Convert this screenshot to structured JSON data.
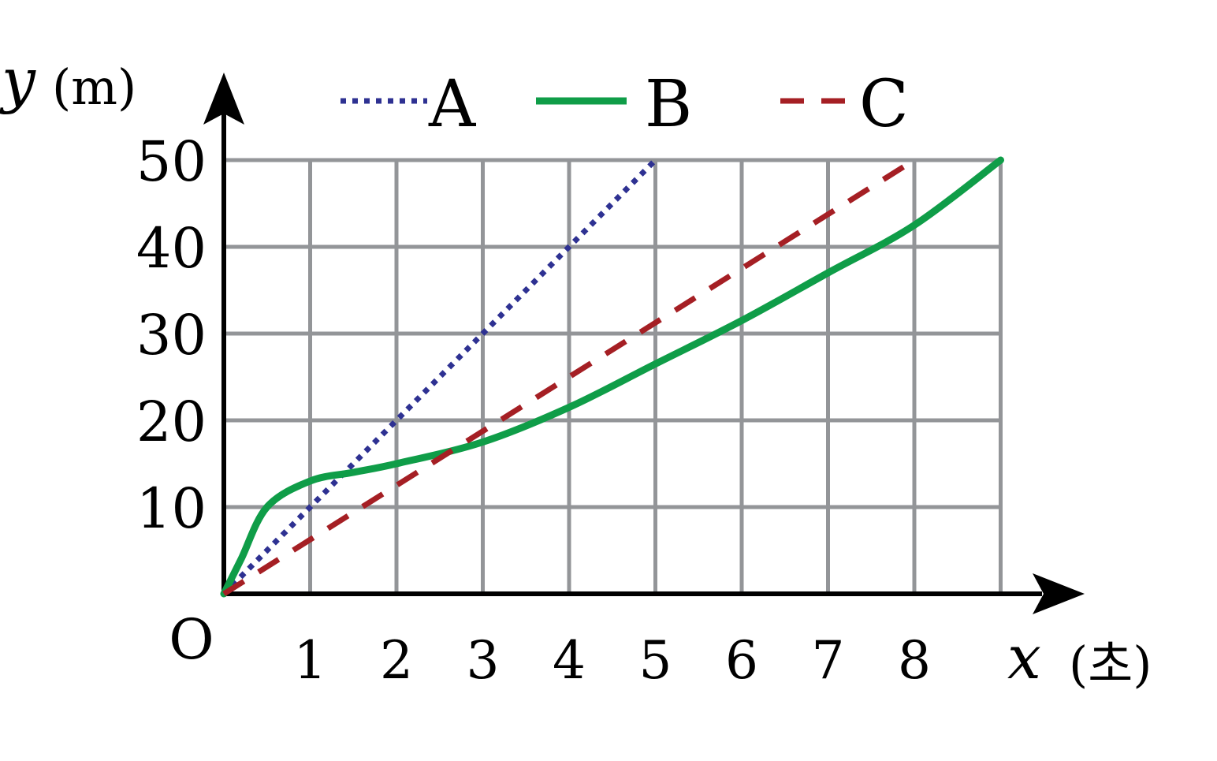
{
  "chart_data": {
    "type": "line",
    "title": "",
    "ylabel": "y",
    "yunit": "(m)",
    "xlabel": "x",
    "xunit": "(초)",
    "origin_label": "O",
    "xlim": [
      0,
      9
    ],
    "ylim": [
      0,
      50
    ],
    "x_ticks": [
      "1",
      "2",
      "3",
      "4",
      "5",
      "6",
      "7",
      "8"
    ],
    "y_ticks": [
      "10",
      "20",
      "30",
      "40",
      "50"
    ],
    "grid": true,
    "legend_position": "top",
    "series": [
      {
        "name": "A",
        "style": "dotted",
        "color": "#2e3192",
        "points": [
          [
            0,
            0
          ],
          [
            5,
            50
          ]
        ]
      },
      {
        "name": "B",
        "style": "solid",
        "color": "#0f9d48",
        "points": [
          [
            0,
            0
          ],
          [
            0.2,
            4
          ],
          [
            0.5,
            10
          ],
          [
            1,
            13
          ],
          [
            1.5,
            14
          ],
          [
            2,
            15
          ],
          [
            3,
            17.5
          ],
          [
            4,
            21.5
          ],
          [
            5,
            26.5
          ],
          [
            6,
            31.5
          ],
          [
            7,
            37
          ],
          [
            8,
            42.5
          ],
          [
            9,
            50
          ]
        ]
      },
      {
        "name": "C",
        "style": "dashed",
        "color": "#a51f24",
        "points": [
          [
            0,
            0
          ],
          [
            8,
            50
          ]
        ]
      }
    ]
  }
}
